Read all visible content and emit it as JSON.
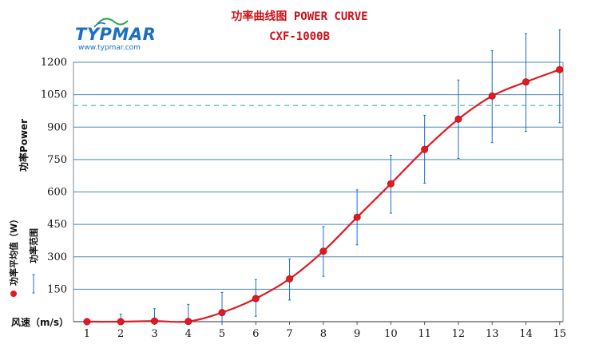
{
  "logo": {
    "name": "TYPMAR",
    "url": "www.typmar.com"
  },
  "chart_data": {
    "type": "line",
    "title": "功率曲线图 POWER CURVE",
    "subtitle": "CXF-1000B",
    "xlabel": "风速（m/s）",
    "ylabel": "功率Power",
    "x": [
      1,
      2,
      3,
      4,
      5,
      6,
      7,
      8,
      9,
      10,
      11,
      12,
      13,
      14,
      15
    ],
    "x_ticks": [
      1,
      2,
      3,
      4,
      5,
      6,
      7,
      8,
      9,
      10,
      11,
      12,
      13,
      14,
      15
    ],
    "y_ticks": [
      150,
      300,
      450,
      600,
      750,
      900,
      1050,
      1200
    ],
    "xlim": [
      0.6,
      15.1
    ],
    "ylim": [
      0,
      1200
    ],
    "grid": true,
    "reference_line": 1000,
    "series": [
      {
        "name": "功率平均值（W）",
        "color": "#e01a22",
        "values": [
          0,
          0,
          3,
          1,
          42,
          107,
          198,
          326,
          483,
          638,
          797,
          937,
          1044,
          1109,
          1166
        ]
      },
      {
        "name": "功率范围",
        "color": "#1a6fc0",
        "type": "range",
        "low": [
          0,
          0,
          0,
          0,
          0,
          25,
          100,
          210,
          355,
          502,
          640,
          755,
          828,
          880,
          920
        ],
        "high": [
          0,
          35,
          60,
          80,
          135,
          195,
          290,
          440,
          610,
          770,
          955,
          1118,
          1254,
          1333,
          1350
        ]
      }
    ],
    "legend_position": "left-vertical"
  }
}
